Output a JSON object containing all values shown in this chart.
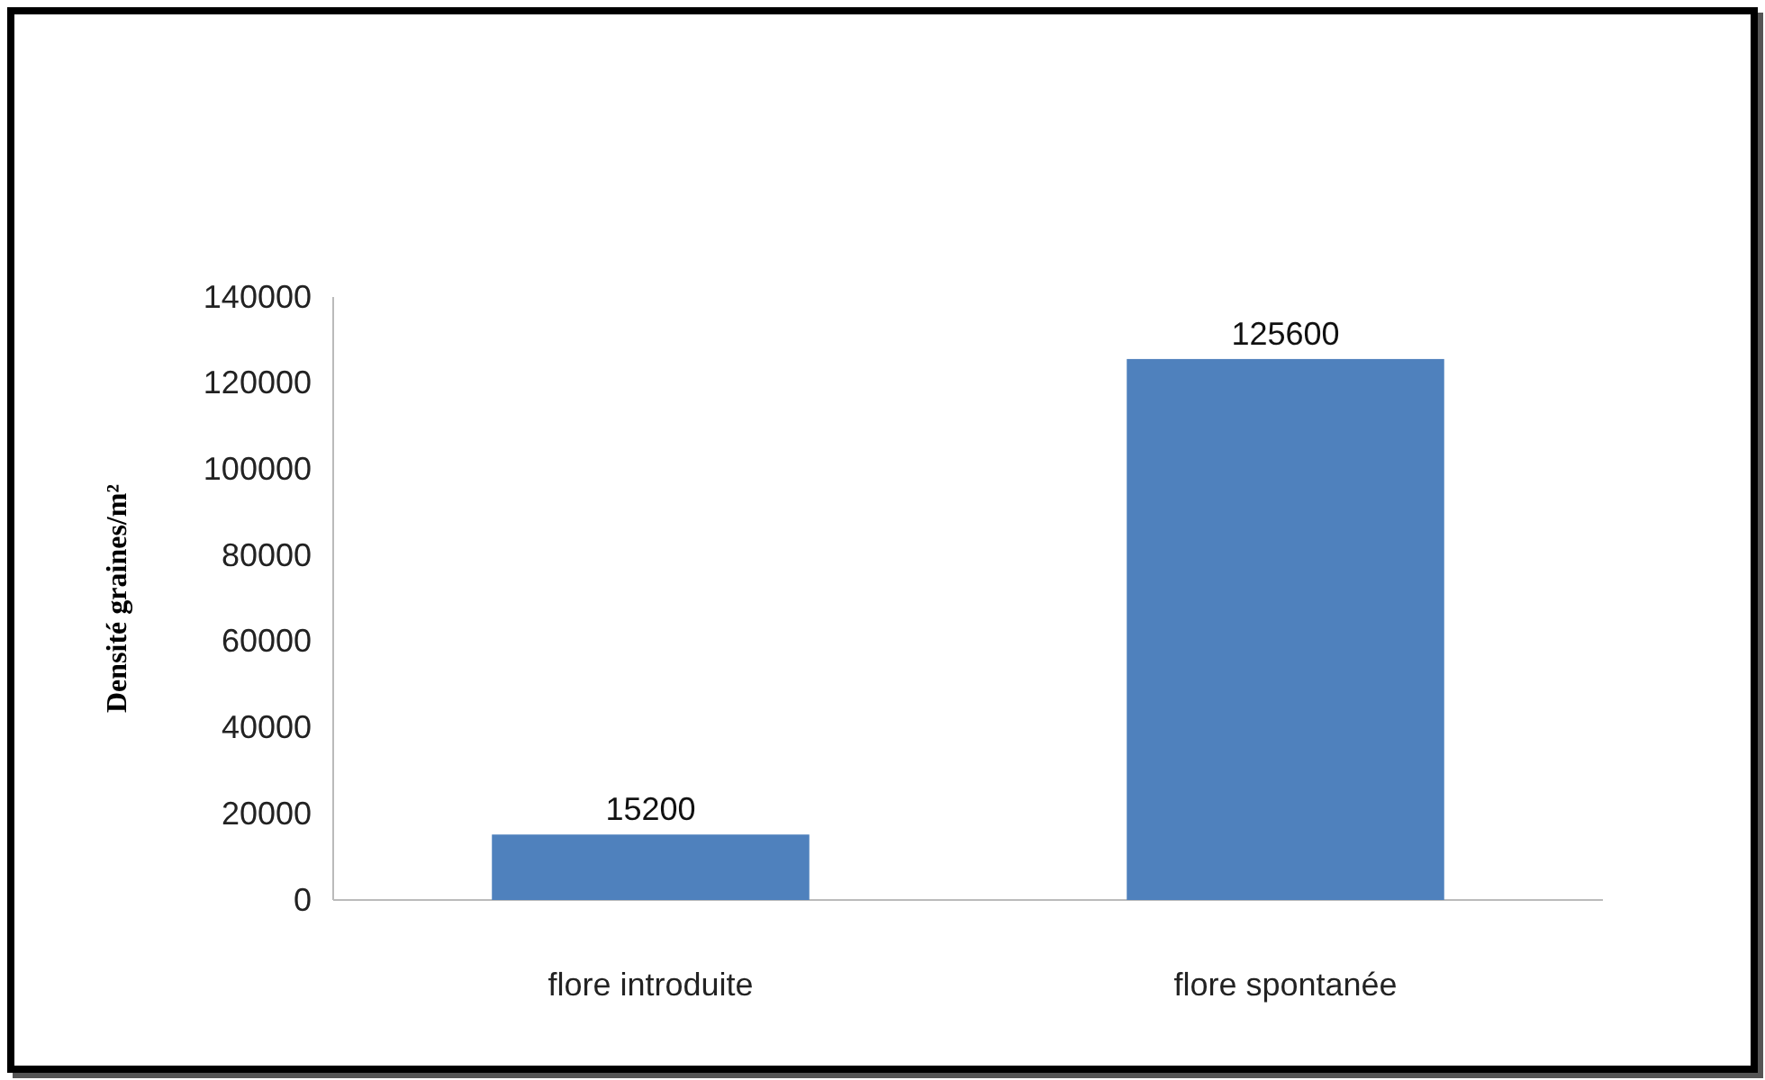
{
  "chart_data": {
    "type": "bar",
    "ylabel": "Densité graines/m²",
    "categories": [
      "flore introduite",
      "flore spontanée"
    ],
    "values": [
      15200,
      125600
    ],
    "color": "#4f81bd",
    "ylim": [
      0,
      140000
    ],
    "yticks": [
      0,
      20000,
      40000,
      60000,
      80000,
      100000,
      120000,
      140000
    ],
    "grid": false,
    "data_labels": true
  }
}
